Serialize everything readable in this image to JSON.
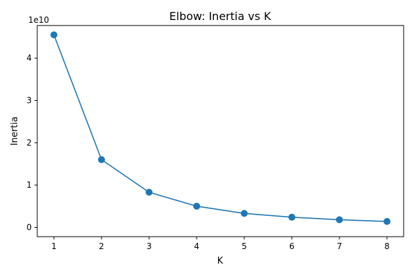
{
  "chart_data": {
    "type": "line",
    "title": "Elbow: Inertia vs K",
    "xlabel": "K",
    "ylabel": "Inertia",
    "y_scale_label": "1e10",
    "xlim": [
      0.65,
      8.35
    ],
    "ylim": [
      -0.22,
      4.77
    ],
    "x_ticks": [
      1,
      2,
      3,
      4,
      5,
      6,
      7,
      8
    ],
    "x_tick_labels": [
      "1",
      "2",
      "3",
      "4",
      "5",
      "6",
      "7",
      "8"
    ],
    "y_ticks": [
      0,
      1,
      2,
      3,
      4
    ],
    "y_tick_labels": [
      "0",
      "1",
      "2",
      "3",
      "4"
    ],
    "grid": false,
    "series": [
      {
        "color": "#1f77b4",
        "marker": "circle",
        "x": [
          1,
          2,
          3,
          4,
          5,
          6,
          7,
          8
        ],
        "y": [
          4.55,
          1.6,
          0.83,
          0.5,
          0.33,
          0.24,
          0.18,
          0.14
        ]
      }
    ]
  }
}
